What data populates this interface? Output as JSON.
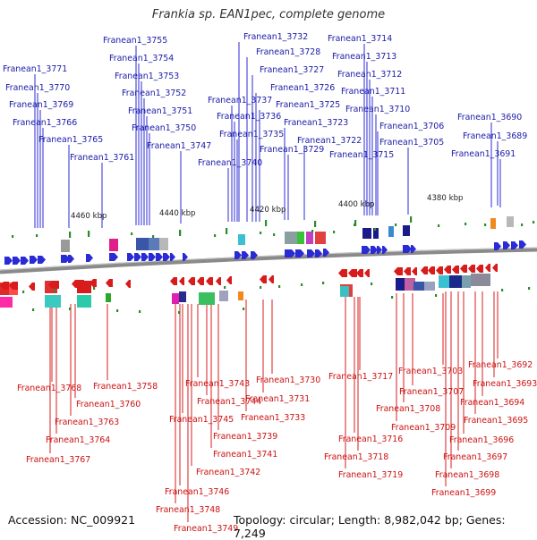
{
  "title": "Frankia sp. EAN1pec, complete genome",
  "footer": {
    "accession": "Accession: NC_009921",
    "topology": "Topology: circular; Length: 8,982,042 bp; Genes: 7,249"
  },
  "colors": {
    "forward_strand": "#2b2bd6",
    "reverse_strand": "#d81c1c",
    "forward_label": "#1a1aa8",
    "reverse_label": "#cc1111",
    "dna_backbone": "#8a8a8a",
    "tick_marks": "#2d8a2d"
  },
  "scale_labels": [
    "4460 kbp",
    "4440 kbp",
    "4420 kbp",
    "4400 kbp",
    "4380 kbp"
  ],
  "forward_genes": [
    "Franean1_3771",
    "Franean1_3770",
    "Franean1_3769",
    "Franean1_3766",
    "Franean1_3765",
    "Franean1_3761",
    "Franean1_3755",
    "Franean1_3754",
    "Franean1_3753",
    "Franean1_3752",
    "Franean1_3751",
    "Franean1_3750",
    "Franean1_3747",
    "Franean1_3732",
    "Franean1_3728",
    "Franean1_3727",
    "Franean1_3737",
    "Franean1_3726",
    "Franean1_3736",
    "Franean1_3725",
    "Franean1_3735",
    "Franean1_3723",
    "Franean1_3740",
    "Franean1_3729",
    "Franean1_3722",
    "Franean1_3714",
    "Franean1_3713",
    "Franean1_3712",
    "Franean1_3711",
    "Franean1_3710",
    "Franean1_3706",
    "Franean1_3705",
    "Franean1_3715",
    "Franean1_3690",
    "Franean1_3689",
    "Franean1_3691"
  ],
  "reverse_genes": [
    "Franean1_3768",
    "Franean1_3758",
    "Franean1_3760",
    "Franean1_3763",
    "Franean1_3764",
    "Franean1_3767",
    "Franean1_3743",
    "Franean1_3744",
    "Franean1_3745",
    "Franean1_3739",
    "Franean1_3741",
    "Franean1_3742",
    "Franean1_3746",
    "Franean1_3748",
    "Franean1_3749",
    "Franean1_3730",
    "Franean1_3731",
    "Franean1_3733",
    "Franean1_3717",
    "Franean1_3716",
    "Franean1_3718",
    "Franean1_3719",
    "Franean1_3703",
    "Franean1_3707",
    "Franean1_3708",
    "Franean1_3709",
    "Franean1_3692",
    "Franean1_3693",
    "Franean1_3694",
    "Franean1_3695",
    "Franean1_3696",
    "Franean1_3697",
    "Franean1_3698",
    "Franean1_3699"
  ]
}
